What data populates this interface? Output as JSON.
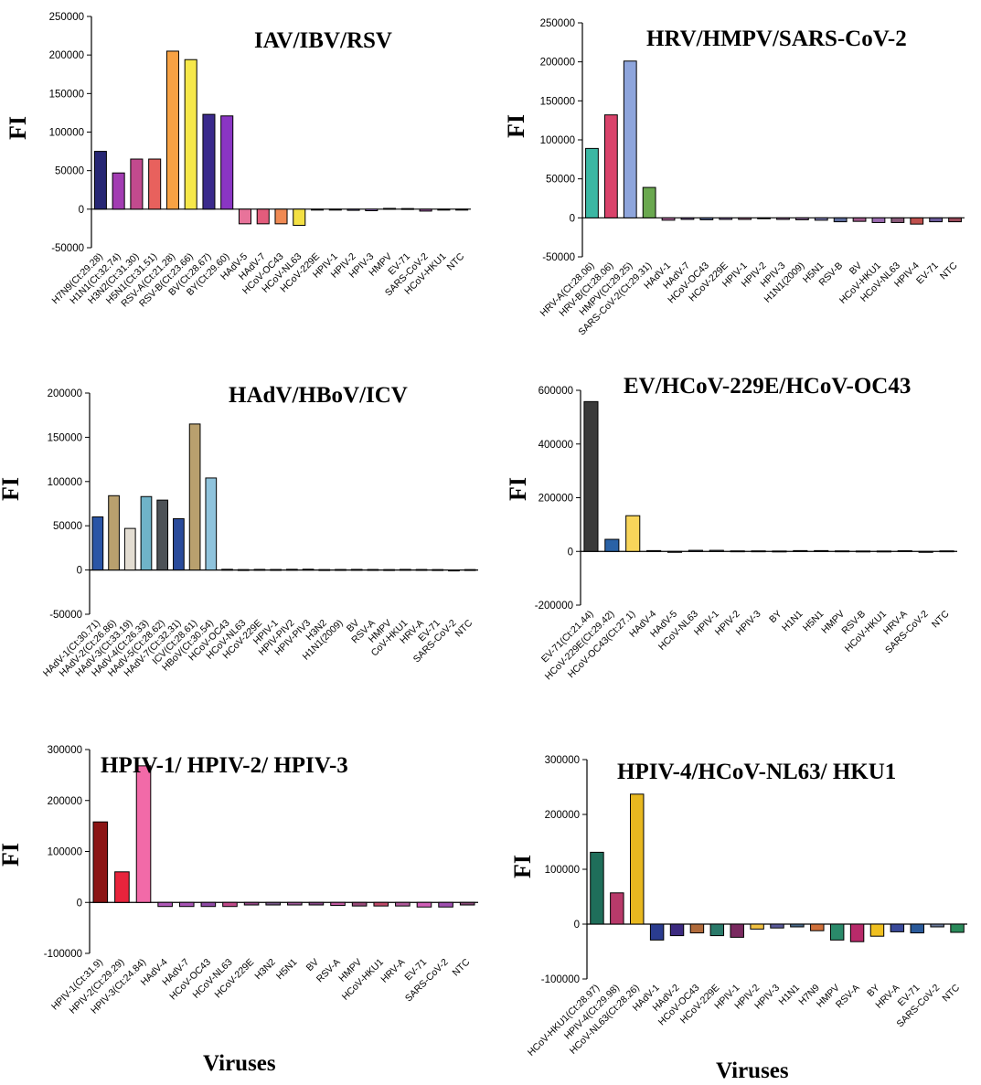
{
  "x_axis_label": "Viruses",
  "chart_data": [
    {
      "type": "bar",
      "title": "IAV/IBV/RSV",
      "ylabel": "FI",
      "ylim": [
        -50000,
        250000
      ],
      "yticks": [
        250000,
        200000,
        150000,
        100000,
        50000,
        0,
        -50000
      ],
      "categories": [
        "H7N9(Ct:29.28)",
        "H1N1(Ct:32.74)",
        "H3N2(Ct:31.30)",
        "H5N1(Ct:31.51)",
        "RSV-A(Ct:21.28)",
        "RSV-B(Ct:23.66)",
        "BV(Ct:28.67)",
        "BY(Ct:29.60)",
        "HAdV-5",
        "HAdV-7",
        "HCoV-OC43",
        "HCoV-NL63",
        "HCoV-229E",
        "HPIV-1",
        "HPIV-2",
        "HPIV-3",
        "HMPV",
        "EV-71",
        "SARS-CoV-2",
        "HCoV-HKU1",
        "NTC"
      ],
      "values": [
        75000,
        47000,
        65000,
        65000,
        205000,
        194000,
        123000,
        121000,
        -19000,
        -19000,
        -19000,
        -21000,
        -1000,
        -1000,
        -1500,
        -2000,
        1000,
        800,
        -2500,
        -1000,
        -800
      ],
      "colors": [
        "#272774",
        "#a23cb2",
        "#c24a8e",
        "#e8615d",
        "#f7a244",
        "#f6e84a",
        "#3a2a8c",
        "#8a35c4",
        "#e8739a",
        "#e35c7c",
        "#f08a54",
        "#f3e044",
        "#b69bd4",
        "#7a7ad0",
        "#8a7fcf",
        "#9b77c9",
        "#9a9ad5",
        "#b9a3d8",
        "#a05aa3",
        "#7070b8",
        "#b2b2c8"
      ]
    },
    {
      "type": "bar",
      "title": "HRV/HMPV/SARS-CoV-2",
      "ylabel": "FI",
      "ylim": [
        -50000,
        250000
      ],
      "yticks": [
        250000,
        200000,
        150000,
        100000,
        50000,
        0,
        -50000
      ],
      "categories": [
        "HRV-A(Ct:28.06)",
        "HRV-B(Ct:28.06)",
        "HMPV(Ct:29.25)",
        "SARS-CoV-2(Ct:29.31)",
        "HAdV-1",
        "HAdV-7",
        "HCoV-OC43",
        "HCoV-229E",
        "HPIV-1",
        "HPIV-2",
        "HPIV-3",
        "H1N1(2009)",
        "H5N1",
        "RSV-B",
        "BV",
        "HCoV-HKU1",
        "HCoV-NL63",
        "HPIV-4",
        "EV-71",
        "NTC"
      ],
      "values": [
        89000,
        132000,
        201000,
        39000,
        -3000,
        -2000,
        -2500,
        -2000,
        -2000,
        -1000,
        -2000,
        -2500,
        -3000,
        -5000,
        -4500,
        -6000,
        -6000,
        -8000,
        -5000,
        -5000
      ],
      "colors": [
        "#3bb7a3",
        "#d9436b",
        "#8ea5dc",
        "#6aa84f",
        "#b26aa0",
        "#7a5a9b",
        "#5c6b9a",
        "#8d6fb1",
        "#aa6a8c",
        "#8e7cc3",
        "#9a6b9f",
        "#8e6a9b",
        "#7f7fb5",
        "#5c6b9a",
        "#a05a8a",
        "#9b6bb0",
        "#8a5a7a",
        "#c0504d",
        "#6a5a9a",
        "#9a4a5a"
      ]
    },
    {
      "type": "bar",
      "title": "HAdV/HBoV/ICV",
      "ylabel": "FI",
      "ylim": [
        -50000,
        200000
      ],
      "yticks": [
        200000,
        150000,
        100000,
        50000,
        0,
        -50000
      ],
      "categories": [
        "HAdV-1(Ct:30.71)",
        "HAdV-2(Ct:26.86)",
        "HAdV-3(Ct:33.19)",
        "HAdV-4(Ct:26.33)",
        "HAdV-5(Ct:28.62)",
        "HAdV-7(Ct:32.31)",
        "ICV(Ct:28.61)",
        "HBoV(Ct:30.54)",
        "HCoV-OC43",
        "HCoV-NL63",
        "HCoV-229E",
        "HPIV-1",
        "HPIV-PIV2",
        "HPIV-PIV3",
        "H3N2",
        "H1N1(2009)",
        "BV",
        "RSV-A",
        "HMPV",
        "CoV-HKU1",
        "HRV-A",
        "EV-71",
        "SARS-CoV-2",
        "NTC"
      ],
      "values": [
        60000,
        84000,
        47000,
        83000,
        79000,
        58000,
        165000,
        104000,
        800,
        500,
        700,
        600,
        800,
        900,
        500,
        600,
        700,
        600,
        500,
        700,
        600,
        500,
        -1000,
        500
      ],
      "colors": [
        "#2a55a6",
        "#b9a06e",
        "#e3ddd2",
        "#6fb3c8",
        "#4d5257",
        "#2a4b9b",
        "#b9a06e",
        "#8fc3dc",
        "#6a8ab0",
        "#a08a60",
        "#6a9ab0",
        "#c4a06a",
        "#a0a0c0",
        "#c4a05a",
        "#8aa0b0",
        "#b0a080",
        "#9ab0c0",
        "#7a9ab0",
        "#b0a090",
        "#8aa0c0",
        "#a09a8a",
        "#90a0b8",
        "#8a8ab0",
        "#a0a0a0"
      ]
    },
    {
      "type": "bar",
      "title": "EV/HCoV-229E/HCoV-OC43",
      "ylabel": "FI",
      "ylim": [
        -200000,
        600000
      ],
      "yticks": [
        600000,
        400000,
        200000,
        0,
        -200000
      ],
      "categories": [
        "EV-71(Ct:21.44)",
        "HCoV-229E(Ct:29.42)",
        "HCoV-OC43(Ct:27.1)",
        "HAdV-4",
        "HAdV-5",
        "HCoV-NL63",
        "HPIV-1",
        "HPIV-2",
        "HPIV-3",
        "BY",
        "H1N1",
        "H5N1",
        "HMPV",
        "RSV-B",
        "HCoV-HKU1",
        "HRV-A",
        "SARS-CoV-2",
        "NTC"
      ],
      "values": [
        558000,
        45000,
        133000,
        3000,
        -2000,
        4000,
        4000,
        2000,
        2000,
        1500,
        3000,
        3000,
        2000,
        1500,
        1500,
        2500,
        -3000,
        2000
      ],
      "colors": [
        "#3a3a3a",
        "#2a62a6",
        "#f8d55a",
        "#6a8ab0",
        "#7a9aa8",
        "#5a7a9a",
        "#8a9aaa",
        "#6a7a8a",
        "#9aa0b0",
        "#7a8a9a",
        "#8a8aa0",
        "#6a8a9a",
        "#a0a0b0",
        "#7a8aa0",
        "#8a9ab0",
        "#9a8a9a",
        "#6a7a9a",
        "#a0a0a0"
      ]
    },
    {
      "type": "bar",
      "title": "HPIV-1/ HPIV-2/ HPIV-3",
      "ylabel": "FI",
      "ylim": [
        -100000,
        300000
      ],
      "yticks": [
        300000,
        200000,
        100000,
        0,
        -100000
      ],
      "categories": [
        "HPIV-1(Ct:31.9)",
        "HPIV-2(Ct:29.29)",
        "HPIV-3(Ct:24.84)",
        "HAdV-4",
        "HAdV-7",
        "HCoV-OC43",
        "HCoV-NL63",
        "HCoV-229E",
        "H3N2",
        "H5N1",
        "BV",
        "RSV-A",
        "HMPV",
        "HCoV-HKU1",
        "HRV-A",
        "EV-71",
        "SARS-CoV-2",
        "NTC"
      ],
      "values": [
        158000,
        60000,
        268000,
        -8000,
        -8000,
        -8000,
        -8000,
        -5000,
        -5000,
        -5000,
        -5000,
        -6000,
        -7000,
        -7000,
        -7000,
        -9000,
        -9000,
        -5000
      ],
      "colors": [
        "#8b1414",
        "#e8243c",
        "#f26aa8",
        "#b05ab8",
        "#a855b5",
        "#8f4aa5",
        "#c04a8a",
        "#9a4a8a",
        "#7a5a8a",
        "#a05a9a",
        "#8a4a8a",
        "#c05aa0",
        "#9a4a7a",
        "#c04a6a",
        "#b05a9a",
        "#d060b8",
        "#a050b0",
        "#8a4a7a"
      ]
    },
    {
      "type": "bar",
      "title": "HPIV-4/HCoV-NL63/ HKU1",
      "ylabel": "FI",
      "ylim": [
        -100000,
        300000
      ],
      "yticks": [
        300000,
        200000,
        100000,
        0,
        -100000
      ],
      "categories": [
        "HCoV-HKU1(Ct:28.97)",
        "HPIV-4(Ct:29.98)",
        "HCoV-NL63(Ct:28.26)",
        "HAdV-1",
        "HAdV-2",
        "HCoV-OC43",
        "HCoV-229E",
        "HPIV-1",
        "HPIV-2",
        "HPIV-3",
        "H1N1",
        "H7N9",
        "HMPV",
        "RSV-A",
        "BY",
        "HRV-A",
        "EV-71",
        "SARS-CoV-2",
        "NTC"
      ],
      "values": [
        131000,
        57000,
        237000,
        -29000,
        -21000,
        -16000,
        -21000,
        -24000,
        -9000,
        -7000,
        -5000,
        -12000,
        -29000,
        -32000,
        -22000,
        -14000,
        -16000,
        -5000,
        -15000
      ],
      "colors": [
        "#1f6e5a",
        "#b83a6a",
        "#e8b820",
        "#2a3c8f",
        "#3c2a80",
        "#b06a3a",
        "#2a7a6a",
        "#7a2a60",
        "#f0c040",
        "#5a5a9a",
        "#4a6a8a",
        "#d0703a",
        "#2a8a6a",
        "#b82a6a",
        "#f0c020",
        "#3a4a9a",
        "#2a5a9a",
        "#6a7a9a",
        "#2a8a5a"
      ]
    }
  ]
}
